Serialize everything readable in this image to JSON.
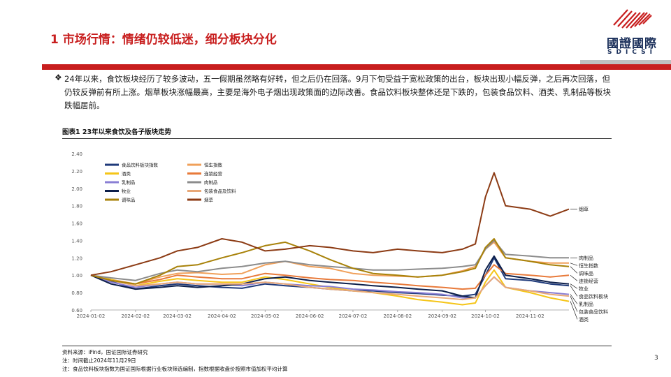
{
  "header": {
    "title": "1 市场行情：情绪仍较低迷，细分板块分化",
    "logo_cn": "國證國際",
    "logo_en": "SDICSI"
  },
  "bullet": {
    "mark": "❖",
    "text": "24年以来，食饮板块经历了较多波动，五一假期虽然略有好转，但之后仍在回落。9月下旬受益于宽松政策的出台，板块出现小幅反弹，之后再次回落，但仍较反弹前有所上涨。烟草板块涨幅最高，主要是海外电子烟出现政策面的边际改善。食品饮料板块整体还是下跌的，包装食品饮料、酒类、乳制品等板块跌幅居前。"
  },
  "figure": {
    "title": "图表1 23年以来食饮及各子版块走势"
  },
  "footer": {
    "source": "资料来源：iFind，国证国际证券研究",
    "note1": "注：时间截止2024年11月29日",
    "note2": "注：食品饮料板块指数为国证国际根据行业板块筛选编制，指数根据收盘价按照市值加权平均计算",
    "page": "3"
  },
  "colors": {
    "brand_red": "#c81e1e",
    "logo_navy": "#1a2f5a"
  },
  "chart_data": {
    "type": "line",
    "x": [
      "2024-01-02",
      "2024-01-16",
      "2024-02-02",
      "2024-02-19",
      "2024-03-02",
      "2024-03-16",
      "2024-04-02",
      "2024-04-16",
      "2024-05-02",
      "2024-05-16",
      "2024-06-02",
      "2024-06-16",
      "2024-07-02",
      "2024-07-16",
      "2024-08-02",
      "2024-08-16",
      "2024-09-02",
      "2024-09-16",
      "2024-09-25",
      "2024-10-02",
      "2024-10-08",
      "2024-10-16",
      "2024-11-02",
      "2024-11-16",
      "2024-11-29"
    ],
    "x_ticks": [
      "2024-01-02",
      "2024-02-02",
      "2024-03-02",
      "2024-04-02",
      "2024-05-02",
      "2024-06-02",
      "2024-07-02",
      "2024-08-02",
      "2024-09-02",
      "2024-10-02",
      "2024-11-02"
    ],
    "ylim": [
      0.6,
      2.4
    ],
    "y_ticks": [
      "0.60",
      "0.80",
      "1.00",
      "1.20",
      "1.40",
      "1.60",
      "1.80",
      "2.00",
      "2.20",
      "2.40"
    ],
    "grid": false,
    "legend_position": "top-left",
    "series": [
      {
        "name": "食品饮料板块指数",
        "color": "#1f3a7a",
        "end_label": "食品饮料板块",
        "values": [
          1.0,
          0.93,
          0.84,
          0.88,
          0.9,
          0.88,
          0.86,
          0.85,
          0.9,
          0.88,
          0.86,
          0.84,
          0.82,
          0.82,
          0.8,
          0.79,
          0.77,
          0.76,
          0.78,
          1.0,
          1.2,
          0.96,
          0.94,
          0.9,
          0.88
        ]
      },
      {
        "name": "恒生指数",
        "color": "#f0a05a",
        "end_label": "恒生指数",
        "values": [
          1.0,
          0.95,
          0.9,
          0.98,
          1.02,
          1.03,
          1.01,
          1.02,
          1.12,
          1.16,
          1.1,
          1.08,
          1.02,
          1.0,
          0.99,
          0.98,
          1.0,
          1.05,
          1.1,
          1.3,
          1.38,
          1.2,
          1.16,
          1.14,
          1.14
        ]
      },
      {
        "name": "酒类",
        "color": "#f5c518",
        "end_label": "酒类",
        "values": [
          1.0,
          0.95,
          0.88,
          0.93,
          0.96,
          0.94,
          0.92,
          0.92,
          0.98,
          0.95,
          0.9,
          0.86,
          0.82,
          0.8,
          0.76,
          0.72,
          0.69,
          0.66,
          0.68,
          0.92,
          1.06,
          0.86,
          0.8,
          0.74,
          0.7
        ]
      },
      {
        "name": "连锁经营",
        "color": "#e87a3a",
        "end_label": "连锁经营",
        "values": [
          1.0,
          0.94,
          0.9,
          0.95,
          1.0,
          0.98,
          0.96,
          0.96,
          1.02,
          1.0,
          0.97,
          0.95,
          0.94,
          0.92,
          0.9,
          0.88,
          0.86,
          0.84,
          0.85,
          1.0,
          1.12,
          1.02,
          1.0,
          0.98,
          1.0
        ]
      },
      {
        "name": "乳制品",
        "color": "#8a7fd4",
        "end_label": "乳制品",
        "values": [
          1.0,
          0.92,
          0.86,
          0.9,
          0.92,
          0.9,
          0.9,
          0.88,
          0.92,
          0.9,
          0.88,
          0.87,
          0.84,
          0.83,
          0.81,
          0.8,
          0.78,
          0.74,
          0.74,
          0.88,
          0.98,
          0.86,
          0.82,
          0.8,
          0.78
        ]
      },
      {
        "name": "肉制品",
        "color": "#8c8c8c",
        "end_label": "肉制品",
        "values": [
          1.0,
          0.97,
          0.94,
          1.02,
          1.06,
          1.04,
          1.08,
          1.1,
          1.14,
          1.16,
          1.12,
          1.1,
          1.08,
          1.06,
          1.06,
          1.07,
          1.08,
          1.1,
          1.12,
          1.3,
          1.4,
          1.24,
          1.22,
          1.2,
          1.2
        ]
      },
      {
        "name": "牧业",
        "color": "#0d1f4a",
        "end_label": "牧业",
        "values": [
          1.0,
          0.9,
          0.84,
          0.86,
          0.88,
          0.86,
          0.88,
          0.9,
          0.96,
          0.98,
          0.94,
          0.92,
          0.9,
          0.88,
          0.86,
          0.84,
          0.82,
          0.76,
          0.74,
          1.06,
          1.22,
          1.0,
          0.96,
          0.92,
          0.9
        ]
      },
      {
        "name": "包装食品及饮料",
        "color": "#e8a878",
        "end_label": "包装食品饮料",
        "values": [
          1.0,
          0.94,
          0.88,
          0.9,
          0.92,
          0.9,
          0.9,
          0.9,
          0.92,
          0.9,
          0.86,
          0.84,
          0.82,
          0.8,
          0.78,
          0.76,
          0.74,
          0.72,
          0.74,
          0.88,
          0.98,
          0.86,
          0.82,
          0.78,
          0.76
        ]
      },
      {
        "name": "调味品",
        "color": "#a8820a",
        "end_label": "调味品",
        "values": [
          1.0,
          0.94,
          0.9,
          1.0,
          1.1,
          1.12,
          1.2,
          1.26,
          1.34,
          1.38,
          1.28,
          1.18,
          1.08,
          1.02,
          1.0,
          0.98,
          1.0,
          1.04,
          1.08,
          1.32,
          1.42,
          1.2,
          1.16,
          1.12,
          1.1
        ]
      },
      {
        "name": "烟草",
        "color": "#8c3b14",
        "end_label": "烟草",
        "values": [
          1.0,
          1.04,
          1.12,
          1.2,
          1.28,
          1.32,
          1.42,
          1.38,
          1.28,
          1.3,
          1.34,
          1.32,
          1.28,
          1.26,
          1.3,
          1.28,
          1.26,
          1.3,
          1.36,
          1.9,
          2.18,
          1.8,
          1.76,
          1.68,
          1.76
        ]
      }
    ]
  }
}
